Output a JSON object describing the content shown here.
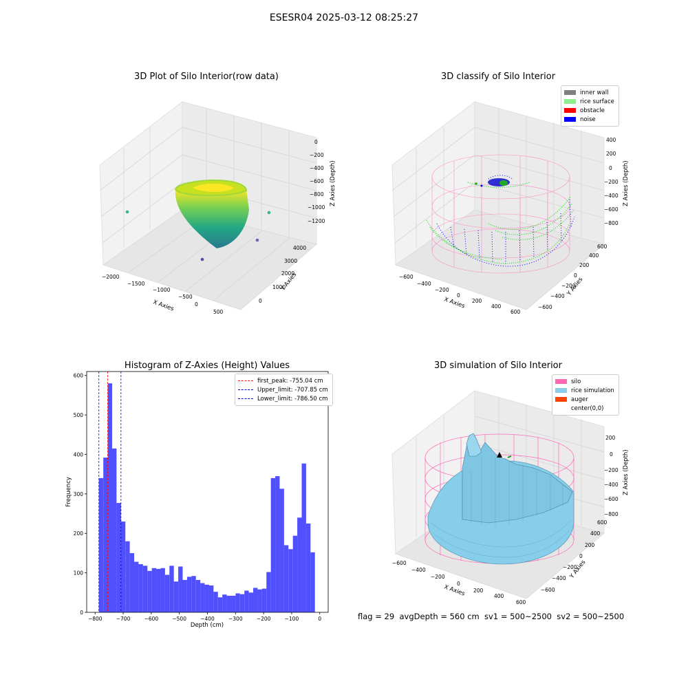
{
  "figure": {
    "suptitle": "ESESR04 2025-03-12 08:25:27",
    "footer": "flag = 29  avgDepth = 560 cm  sv1 = 500~2500  sv2 = 500~2500"
  },
  "colors": {
    "hist_bar": "#5050ff",
    "first_peak_line": "#ff0000",
    "limit_lines": "#0000cc",
    "inner_wall": "#808080",
    "rice_surface": "#90ee90",
    "obstacle": "#ff0000",
    "noise": "#0000ff",
    "silo": "#ff69b4",
    "rice_simulation": "#87ceeb",
    "auger": "#ff4500"
  },
  "chart_data": [
    {
      "type": "scatter",
      "title": "3D Plot of Silo Interior(row data)",
      "xlabel": "X Axies",
      "ylabel": "Y Axies",
      "zlabel": "Z Axies (Depth)",
      "x_ticks": [
        "−2000",
        "−1500",
        "−1000",
        "−500",
        "0",
        "500"
      ],
      "y_ticks": [
        "0",
        "1000",
        "2000",
        "3000",
        "4000"
      ],
      "z_ticks": [
        "0",
        "−200",
        "−400",
        "−600",
        "−800",
        "−1000",
        "−1200"
      ],
      "colormap": "viridis"
    },
    {
      "type": "scatter",
      "title": "3D classify of Silo Interior",
      "xlabel": "X Axies",
      "ylabel": "Y Axies",
      "zlabel": "Z Axies (Depth)",
      "x_ticks": [
        "−600",
        "−400",
        "−200",
        "0",
        "200",
        "400",
        "600"
      ],
      "y_ticks": [
        "−600",
        "−400",
        "−200",
        "0",
        "200",
        "400",
        "600"
      ],
      "z_ticks": [
        "400",
        "200",
        "0",
        "−200",
        "−400",
        "−600",
        "−800"
      ],
      "legend": [
        "inner wall",
        "rice surface",
        "obstacle",
        "noise"
      ],
      "legend_loc": "upper right"
    },
    {
      "type": "bar",
      "title": "Histogram of Z-Axies (Height) Values",
      "xlabel": "Depth (cm)",
      "ylabel": "Frequency",
      "xlim": [
        -830,
        30
      ],
      "ylim": [
        0,
        610
      ],
      "x_ticks": [
        -800,
        -700,
        -600,
        -500,
        -400,
        -300,
        -200,
        -100,
        0
      ],
      "y_ticks": [
        0,
        100,
        200,
        300,
        400,
        500,
        600
      ],
      "bin_start": -786.5,
      "bin_width": 15.7,
      "values": [
        340,
        392,
        580,
        415,
        277,
        230,
        180,
        150,
        128,
        122,
        118,
        105,
        112,
        110,
        112,
        95,
        118,
        78,
        116,
        82,
        90,
        92,
        82,
        74,
        70,
        68,
        52,
        38,
        45,
        42,
        42,
        48,
        46,
        55,
        50,
        62,
        58,
        60,
        102,
        340,
        345,
        313,
        170,
        160,
        194,
        240,
        377,
        225,
        152
      ],
      "vlines": [
        {
          "label": "first_peak: -755.04 cm",
          "x": -755.04
        },
        {
          "label": "Upper_limit: -707.85 cm",
          "x": -707.85
        },
        {
          "label": "Lower_limit: -786.50 cm",
          "x": -786.5
        }
      ],
      "legend_loc": "upper right"
    },
    {
      "type": "surface",
      "title": "3D simulation of Silo Interior",
      "xlabel": "X Axies",
      "ylabel": "Y Axies",
      "zlabel": "Z Axies (Depth)",
      "x_ticks": [
        "−600",
        "−400",
        "−200",
        "0",
        "200",
        "400",
        "600"
      ],
      "y_ticks": [
        "−600",
        "−400",
        "−200",
        "0",
        "200",
        "400",
        "600"
      ],
      "z_ticks": [
        "200",
        "0",
        "−200",
        "−400",
        "−600",
        "−800"
      ],
      "legend": [
        "silo",
        "rice simulation",
        "auger",
        "center(0,0)"
      ],
      "legend_loc": "upper right"
    }
  ]
}
